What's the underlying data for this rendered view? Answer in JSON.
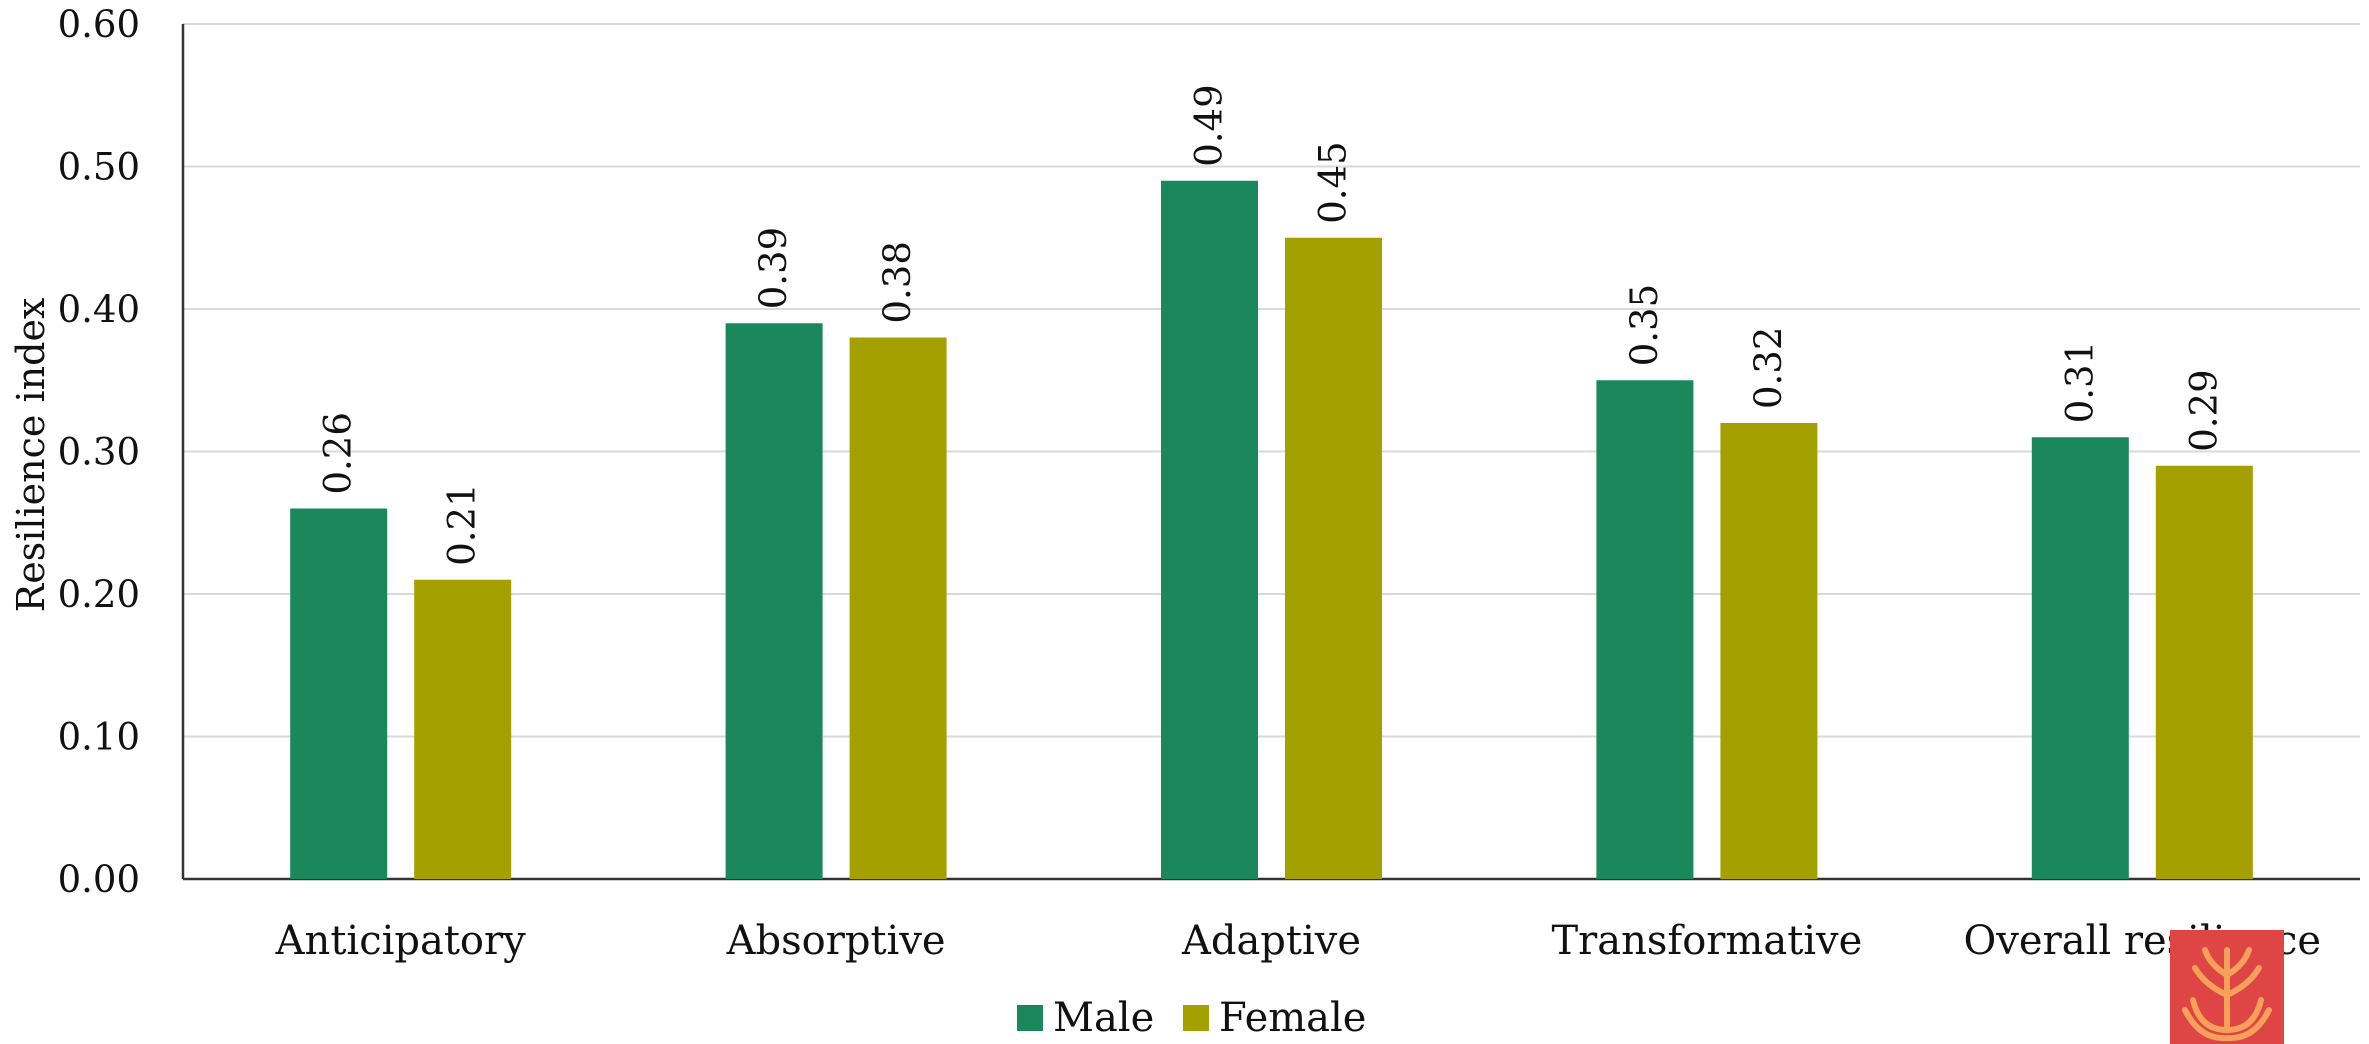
{
  "chart_data": {
    "type": "bar",
    "title": "",
    "xlabel": "",
    "ylabel": "Resilience index",
    "ylim": [
      0,
      0.6
    ],
    "yticks": [
      "0.00",
      "0.10",
      "0.20",
      "0.30",
      "0.40",
      "0.50",
      "0.60"
    ],
    "grid": true,
    "legend_position": "bottom-center",
    "categories": [
      "Anticipatory",
      "Absorptive",
      "Adaptive",
      "Transformative",
      "Overall resilience"
    ],
    "series": [
      {
        "name": "Male",
        "color": "#1a875c",
        "values": [
          0.26,
          0.39,
          0.49,
          0.35,
          0.31
        ],
        "labels": [
          "0.26",
          "0.39",
          "0.49",
          "0.35",
          "0.31"
        ]
      },
      {
        "name": "Female",
        "color": "#a3a000",
        "values": [
          0.21,
          0.38,
          0.45,
          0.32,
          0.29
        ],
        "labels": [
          "0.21",
          "0.38",
          "0.45",
          "0.32",
          "0.29"
        ]
      }
    ]
  },
  "logo": {
    "name": "wheat-emblem-logo",
    "background_color": "#e04545",
    "foreground_color": "#f5a15a"
  }
}
